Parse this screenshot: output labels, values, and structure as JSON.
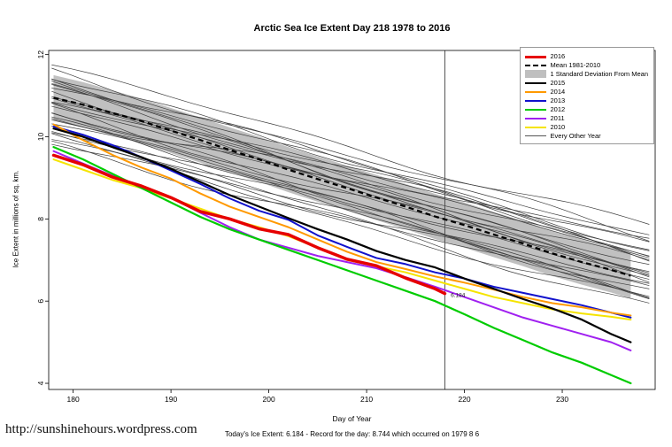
{
  "footer": {
    "caption": "Today's Ice Extent: 6.184  -  Record for the day: 8.744 which occurred on 1979 8 6",
    "url": "http://sunshinehours.wordpress.com"
  },
  "legend": [
    {
      "label": "2016",
      "swatch": "thick",
      "color": "#e60000"
    },
    {
      "label": "Mean 1981-2010",
      "swatch": "dashed",
      "color": "#000000"
    },
    {
      "label": "1 Standard Deviation From Mean",
      "swatch": "band",
      "color": "#bfbfbf"
    },
    {
      "label": "2015",
      "swatch": "line",
      "color": "#000000"
    },
    {
      "label": "2014",
      "swatch": "line",
      "color": "#ff9900"
    },
    {
      "label": "2013",
      "swatch": "line",
      "color": "#1111cc"
    },
    {
      "label": "2012",
      "swatch": "line",
      "color": "#00cc00"
    },
    {
      "label": "2011",
      "swatch": "line",
      "color": "#a020f0"
    },
    {
      "label": "2010",
      "swatch": "line",
      "color": "#f5e400"
    },
    {
      "label": "Every Other Year",
      "swatch": "thin",
      "color": "#555555"
    }
  ],
  "chart_data": {
    "type": "line",
    "title": "Arctic Sea Ice Extent Day 218 1978 to 2016",
    "xlabel": "Day of Year",
    "ylabel": "Ice Extent in millions of sq. km.",
    "xlim": [
      177.5,
      239.5
    ],
    "ylim": [
      3.85,
      12.1
    ],
    "x_ticks": [
      180,
      190,
      200,
      210,
      220,
      230
    ],
    "y_ticks": [
      4,
      6,
      8,
      10,
      12
    ],
    "grid": false,
    "legend_position": "top-right",
    "vline_x": 218,
    "band_color": "#c0c0c0",
    "x": [
      178,
      181,
      184,
      187,
      190,
      193,
      196,
      199,
      202,
      205,
      208,
      211,
      214,
      217,
      220,
      223,
      226,
      229,
      232,
      235,
      237
    ],
    "mean_series": {
      "name": "Mean 1981-2010",
      "std": 0.55,
      "values": [
        10.95,
        10.78,
        10.58,
        10.38,
        10.15,
        9.92,
        9.68,
        9.45,
        9.2,
        8.97,
        8.75,
        8.52,
        8.3,
        8.06,
        7.85,
        7.62,
        7.4,
        7.16,
        6.95,
        6.76,
        6.62
      ]
    },
    "series": [
      {
        "name": "2016",
        "color": "#e60000",
        "width": 3.5,
        "x": [
          178,
          181,
          184,
          187,
          190,
          193,
          196,
          199,
          202,
          205,
          208,
          211,
          214,
          217,
          218
        ],
        "values": [
          9.55,
          9.32,
          9.02,
          8.8,
          8.52,
          8.18,
          8.0,
          7.76,
          7.62,
          7.3,
          7.02,
          6.86,
          6.56,
          6.3,
          6.184
        ]
      },
      {
        "name": "2015",
        "color": "#000000",
        "width": 2.2,
        "values": [
          10.2,
          10.0,
          9.75,
          9.5,
          9.22,
          8.9,
          8.58,
          8.3,
          8.02,
          7.75,
          7.5,
          7.22,
          7.0,
          6.82,
          6.55,
          6.3,
          6.05,
          5.82,
          5.55,
          5.2,
          5.0
        ]
      },
      {
        "name": "2014",
        "color": "#ff9900",
        "width": 2,
        "values": [
          10.3,
          9.92,
          9.56,
          9.25,
          8.98,
          8.62,
          8.3,
          8.05,
          7.8,
          7.5,
          7.2,
          6.95,
          6.78,
          6.6,
          6.45,
          6.28,
          6.1,
          5.95,
          5.85,
          5.72,
          5.65
        ]
      },
      {
        "name": "2013",
        "color": "#1111cc",
        "width": 2,
        "values": [
          10.25,
          10.05,
          9.8,
          9.5,
          9.18,
          8.85,
          8.5,
          8.2,
          7.98,
          7.6,
          7.32,
          7.05,
          6.9,
          6.7,
          6.55,
          6.35,
          6.2,
          6.05,
          5.9,
          5.72,
          5.6
        ]
      },
      {
        "name": "2012",
        "color": "#00cc00",
        "width": 2.2,
        "values": [
          9.75,
          9.45,
          9.1,
          8.75,
          8.4,
          8.05,
          7.75,
          7.5,
          7.25,
          7.0,
          6.75,
          6.5,
          6.25,
          6.0,
          5.68,
          5.35,
          5.05,
          4.75,
          4.5,
          4.2,
          4.0
        ]
      },
      {
        "name": "2011",
        "color": "#a020f0",
        "width": 2,
        "values": [
          9.65,
          9.35,
          9.05,
          8.8,
          8.52,
          8.15,
          7.8,
          7.5,
          7.3,
          7.1,
          6.95,
          6.8,
          6.58,
          6.35,
          6.1,
          5.85,
          5.6,
          5.4,
          5.2,
          5.0,
          4.8
        ]
      },
      {
        "name": "2010",
        "color": "#f5e400",
        "width": 2,
        "values": [
          9.45,
          9.2,
          8.95,
          8.75,
          8.5,
          8.25,
          8.0,
          7.8,
          7.58,
          7.3,
          7.0,
          6.85,
          6.7,
          6.5,
          6.3,
          6.1,
          5.95,
          5.8,
          5.7,
          5.62,
          5.55
        ]
      }
    ],
    "background": {
      "name": "Every Other Year",
      "color": "#3d3d3d",
      "pairs": [
        [
          11.7,
          7.8
        ],
        [
          11.55,
          7.55
        ],
        [
          11.45,
          7.3
        ],
        [
          11.4,
          7.5
        ],
        [
          11.3,
          7.1
        ],
        [
          11.25,
          7.4
        ],
        [
          11.15,
          6.95
        ],
        [
          11.1,
          7.2
        ],
        [
          11.0,
          6.85
        ],
        [
          10.95,
          7.05
        ],
        [
          10.85,
          6.7
        ],
        [
          10.8,
          6.9
        ],
        [
          10.7,
          6.55
        ],
        [
          10.65,
          6.8
        ],
        [
          10.55,
          6.45
        ],
        [
          10.5,
          6.65
        ],
        [
          10.4,
          6.3
        ],
        [
          10.35,
          6.55
        ],
        [
          10.25,
          6.2
        ],
        [
          10.15,
          6.4
        ],
        [
          10.05,
          6.1
        ],
        [
          9.95,
          6.3
        ],
        [
          9.9,
          5.95
        ],
        [
          9.8,
          6.15
        ],
        [
          10.45,
          7.6
        ],
        [
          11.35,
          6.6
        ],
        [
          10.9,
          7.3
        ],
        [
          10.2,
          5.85
        ]
      ]
    },
    "annotation": {
      "text": "6.184",
      "day": 218.6,
      "value": 6.1
    }
  }
}
